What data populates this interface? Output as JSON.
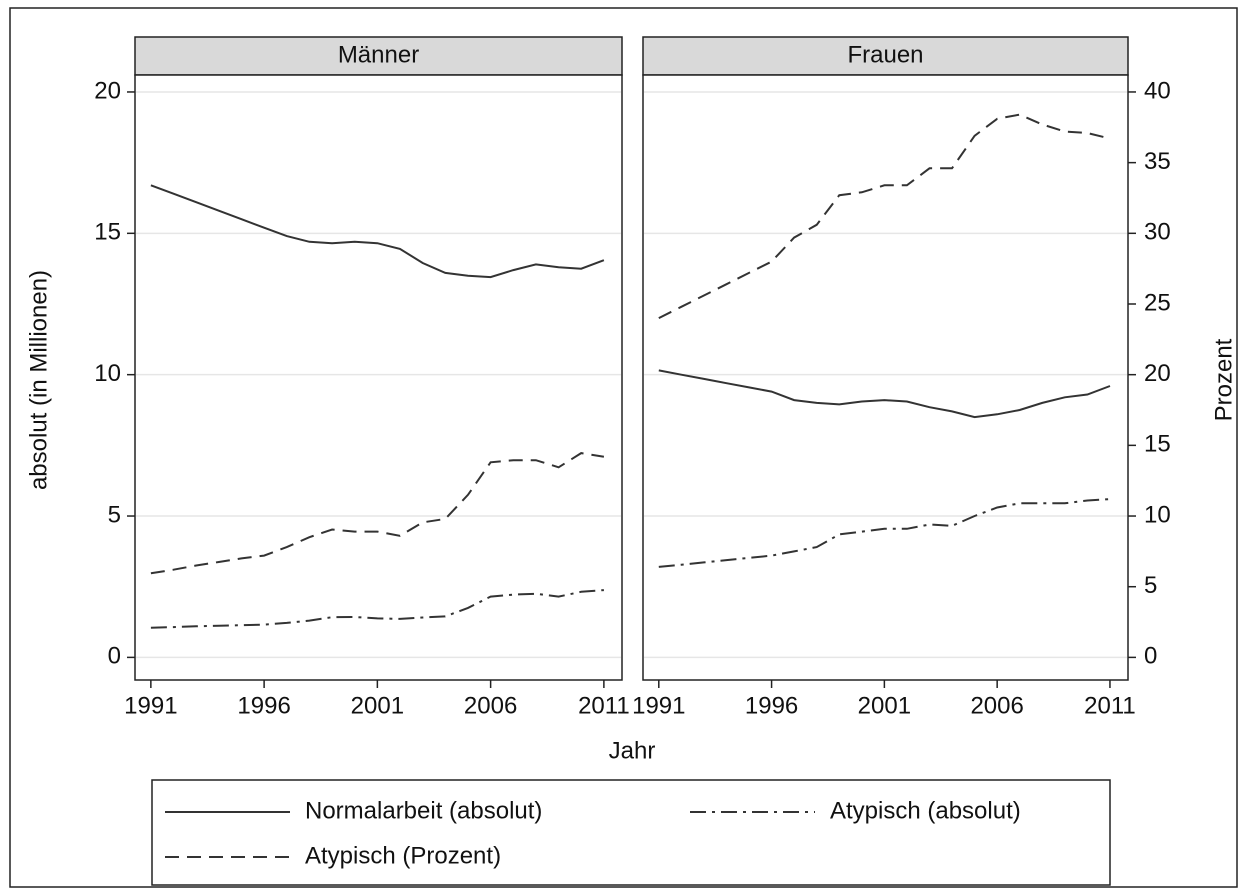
{
  "chart_data": [
    {
      "type": "line",
      "title": "Männer",
      "y_label": "absolut (in Millionen)",
      "x_label": "Jahr",
      "x": [
        1991,
        1992,
        1993,
        1994,
        1995,
        1996,
        1997,
        1998,
        1999,
        2000,
        2001,
        2002,
        2003,
        2004,
        2005,
        2006,
        2007,
        2008,
        2009,
        2010,
        2011
      ],
      "xlim": [
        1990.3,
        2011.8
      ],
      "xticks": [
        1991,
        1996,
        2001,
        2006,
        2011
      ],
      "ylim": [
        -0.8,
        20.6
      ],
      "yticks": [
        0,
        5,
        10,
        15,
        20
      ],
      "y2lim": [
        -1.6,
        41.2
      ],
      "grid": true,
      "series": [
        {
          "name": "Normalarbeit (absolut)",
          "color": "#333333",
          "dash": "solid",
          "values": [
            16.7,
            16.4,
            16.1,
            15.8,
            15.5,
            15.2,
            14.9,
            14.7,
            14.65,
            14.7,
            14.65,
            14.45,
            13.95,
            13.6,
            13.5,
            13.45,
            13.7,
            13.9,
            13.8,
            13.75,
            14.05
          ]
        },
        {
          "name": "Atypisch (absolut)",
          "color": "#333333",
          "dash": "dashdot",
          "values": [
            1.05,
            1.07,
            1.1,
            1.12,
            1.14,
            1.16,
            1.22,
            1.3,
            1.42,
            1.43,
            1.38,
            1.36,
            1.41,
            1.45,
            1.75,
            2.15,
            2.22,
            2.25,
            2.15,
            2.32,
            2.38
          ]
        },
        {
          "name": "Atypisch (Prozent)",
          "color": "#333333",
          "dash": "dash",
          "axis": "y2",
          "values": [
            5.95,
            6.2,
            6.5,
            6.75,
            7.0,
            7.2,
            7.8,
            8.5,
            9.05,
            8.9,
            8.9,
            8.6,
            9.55,
            9.8,
            11.5,
            13.8,
            13.95,
            13.95,
            13.45,
            14.45,
            14.2
          ]
        }
      ]
    },
    {
      "type": "line",
      "title": "Frauen",
      "y2_label": "Prozent",
      "x": [
        1991,
        1992,
        1993,
        1994,
        1995,
        1996,
        1997,
        1998,
        1999,
        2000,
        2001,
        2002,
        2003,
        2004,
        2005,
        2006,
        2007,
        2008,
        2009,
        2010,
        2011
      ],
      "xlim": [
        1990.3,
        2011.8
      ],
      "xticks": [
        1991,
        1996,
        2001,
        2006,
        2011
      ],
      "ylim": [
        -0.8,
        20.6
      ],
      "y2lim": [
        -1.6,
        41.2
      ],
      "y2ticks": [
        0,
        5,
        10,
        15,
        20,
        25,
        30,
        35,
        40
      ],
      "grid": true,
      "series": [
        {
          "color": "#333333",
          "dash": "solid",
          "values": [
            10.15,
            10.0,
            9.85,
            9.7,
            9.55,
            9.4,
            9.1,
            9.0,
            8.95,
            9.05,
            9.1,
            9.05,
            8.85,
            8.7,
            8.5,
            8.6,
            8.75,
            9.0,
            9.2,
            9.3,
            9.6
          ]
        },
        {
          "color": "#333333",
          "dash": "dashdot",
          "values": [
            3.2,
            3.28,
            3.36,
            3.44,
            3.52,
            3.6,
            3.75,
            3.9,
            4.35,
            4.45,
            4.55,
            4.55,
            4.7,
            4.65,
            5.0,
            5.3,
            5.45,
            5.45,
            5.45,
            5.55,
            5.6
          ]
        },
        {
          "color": "#333333",
          "dash": "dash",
          "axis": "y2",
          "values": [
            24.0,
            24.8,
            25.6,
            26.4,
            27.2,
            28.0,
            29.7,
            30.6,
            32.7,
            32.9,
            33.4,
            33.4,
            34.6,
            34.6,
            36.9,
            38.1,
            38.4,
            37.7,
            37.2,
            37.1,
            36.7
          ]
        }
      ]
    }
  ]
}
